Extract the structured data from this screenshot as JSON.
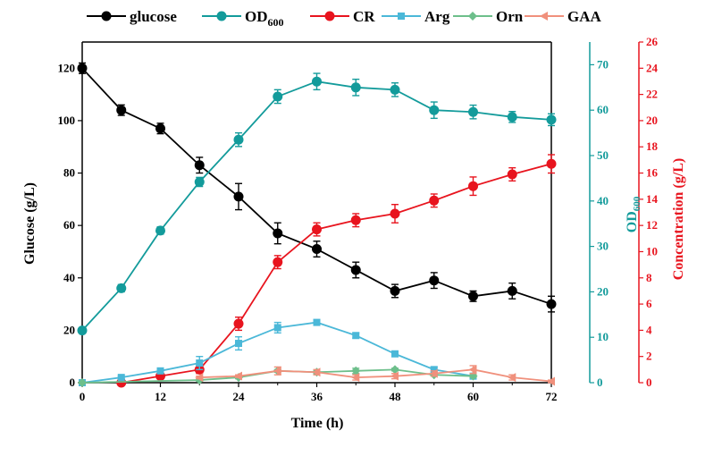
{
  "chart_data": {
    "type": "line",
    "x_axis": {
      "label": "Time (h)",
      "range": [
        0,
        72
      ],
      "ticks": [
        "0",
        "12",
        "24",
        "36",
        "48",
        "60",
        "72"
      ]
    },
    "y_axes": {
      "left": {
        "label": "Glucose (g/L)",
        "range": [
          0,
          130
        ],
        "ticks": [
          "0",
          "20",
          "40",
          "60",
          "80",
          "100",
          "120"
        ],
        "color": "#000000"
      },
      "right1": {
        "label_main": "OD",
        "label_sub": "600",
        "range": [
          0,
          75
        ],
        "ticks": [
          "0",
          "10",
          "20",
          "30",
          "40",
          "50",
          "60",
          "70"
        ],
        "color": "#139b9b"
      },
      "right2": {
        "label": "Concentration (g/L)",
        "range": [
          0,
          26
        ],
        "ticks": [
          "0",
          "2",
          "4",
          "6",
          "8",
          "10",
          "12",
          "14",
          "16",
          "18",
          "20",
          "22",
          "24",
          "26"
        ],
        "color": "#e8141e"
      }
    },
    "legend_position": "top",
    "series": [
      {
        "name": "glucose",
        "axis": "left",
        "color": "#000000",
        "marker": "circle",
        "x": [
          0,
          6,
          12,
          18,
          24,
          30,
          36,
          42,
          48,
          54,
          60,
          66,
          72
        ],
        "y": [
          120,
          104,
          97,
          83,
          71,
          57,
          51,
          43,
          35,
          39,
          33,
          35,
          30
        ],
        "err": [
          2,
          2,
          2,
          3,
          5,
          4,
          3,
          3,
          2.5,
          3,
          2,
          3,
          3
        ]
      },
      {
        "name": "OD",
        "name_sub": "600",
        "axis": "right1",
        "color": "#139b9b",
        "marker": "circle",
        "x": [
          0,
          6,
          12,
          18,
          24,
          30,
          36,
          42,
          48,
          54,
          60,
          66,
          72
        ],
        "y": [
          11.5,
          20.8,
          33.5,
          44.2,
          53.5,
          63,
          66.3,
          65,
          64.5,
          60,
          59.6,
          58.5,
          57.9
        ],
        "err": [
          0.5,
          0.8,
          0.8,
          1,
          1.5,
          1.5,
          1.8,
          1.8,
          1.5,
          1.8,
          1.5,
          1.2,
          1.3
        ]
      },
      {
        "name": "CR",
        "axis": "right2",
        "color": "#e8141e",
        "marker": "circle",
        "x": [
          6,
          12,
          18,
          24,
          30,
          36,
          42,
          48,
          54,
          60,
          66,
          72
        ],
        "y": [
          0,
          0.5,
          1,
          4.5,
          9.2,
          11.7,
          12.4,
          12.9,
          13.9,
          15.0,
          15.9,
          16.7
        ],
        "err": [
          0.1,
          0.2,
          0.3,
          0.5,
          0.5,
          0.5,
          0.5,
          0.7,
          0.5,
          0.7,
          0.5,
          0.7
        ]
      },
      {
        "name": "Arg",
        "axis": "right2",
        "color": "#4bb8d8",
        "marker": "square",
        "x": [
          0,
          6,
          12,
          18,
          24,
          30,
          36,
          42,
          48,
          54,
          60
        ],
        "y": [
          0,
          0.4,
          0.9,
          1.5,
          3.0,
          4.2,
          4.6,
          3.6,
          2.2,
          1.0,
          0.5
        ],
        "err": [
          0,
          0.1,
          0.2,
          0.5,
          0.5,
          0.4,
          0.2,
          0.2,
          0.2,
          0.2,
          0.1
        ]
      },
      {
        "name": "Orn",
        "axis": "right2",
        "color": "#6dbf8b",
        "marker": "diamond",
        "x": [
          0,
          18,
          24,
          30,
          36,
          42,
          48,
          54,
          60
        ],
        "y": [
          0,
          0.2,
          0.4,
          0.9,
          0.8,
          0.9,
          1.0,
          0.6,
          0.5
        ],
        "err": [
          0,
          0.1,
          0.1,
          0.1,
          0.1,
          0.2,
          0.1,
          0.1,
          0.1
        ]
      },
      {
        "name": "GAA",
        "axis": "right2",
        "color": "#f0907c",
        "marker": "triangle-left",
        "x": [
          18,
          24,
          30,
          36,
          42,
          48,
          54,
          60,
          66,
          72
        ],
        "y": [
          0.4,
          0.5,
          0.9,
          0.8,
          0.4,
          0.5,
          0.7,
          1.0,
          0.4,
          0.1
        ],
        "err": [
          0.1,
          0.1,
          0.3,
          0.2,
          0.2,
          0.2,
          0.2,
          0.3,
          0.2,
          0.1
        ]
      }
    ]
  }
}
